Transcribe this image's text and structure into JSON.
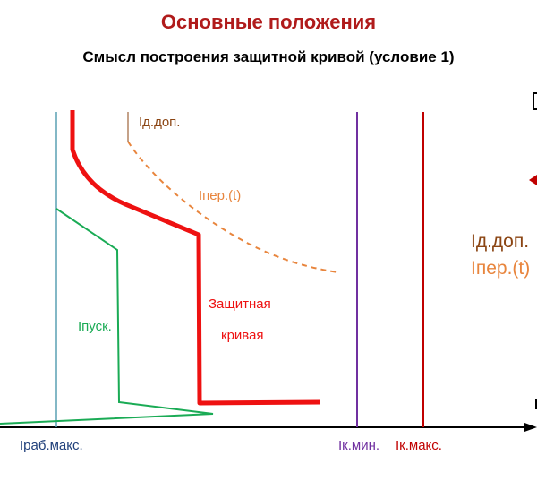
{
  "title": "Основные положения",
  "subtitle": "Смысл построения защитной кривой (условие 1)",
  "labels": {
    "id_dop": "Iд.доп.",
    "iper_t": "Iпер.(t)",
    "zashchitnaya": "Защитная",
    "krivaya": "кривая",
    "ipusk": "Iпуск.",
    "irab_maks": "Iраб.макс.",
    "ik_min": "Iк.мин.",
    "ik_maks": "Iк.макс."
  },
  "legend": {
    "id_dop": "Iд.доп.",
    "iper_t": "Iпер.(t)"
  },
  "colors": {
    "title": "#b01b1b",
    "protective_curve": "#ee1111",
    "overload_curve": "#e8853d",
    "id_dop": "#8b4513",
    "start_curve": "#1aab55",
    "irab_line": "#5aa0b4",
    "ik_min_line": "#7030a0",
    "ik_maks_line": "#c00000",
    "axis": "#000000",
    "irab_label": "#1f3f7a"
  }
}
